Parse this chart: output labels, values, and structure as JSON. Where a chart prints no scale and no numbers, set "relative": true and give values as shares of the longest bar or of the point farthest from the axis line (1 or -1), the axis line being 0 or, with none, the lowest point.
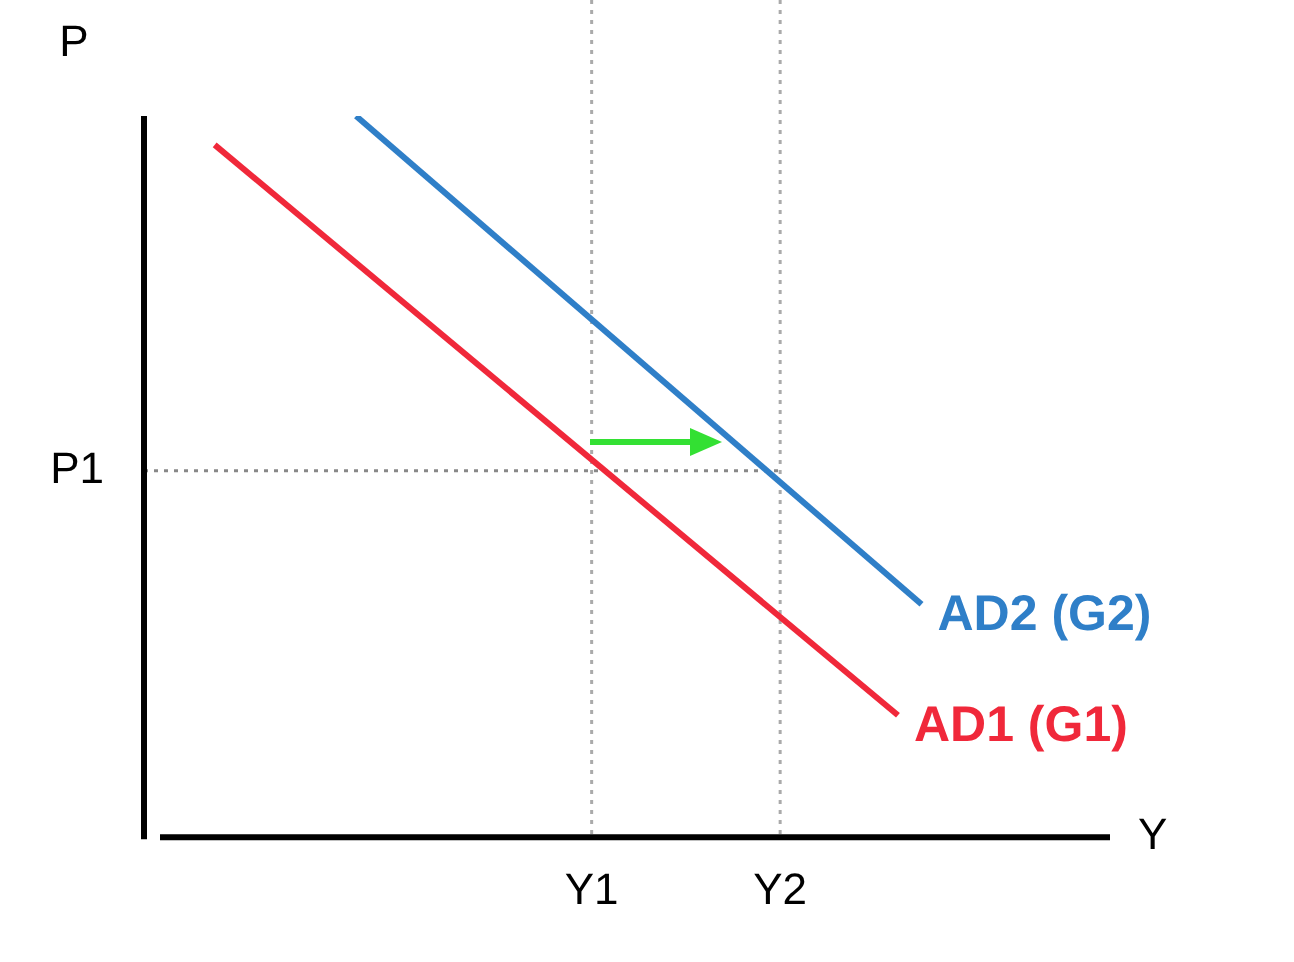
{
  "chart_data": {
    "type": "line",
    "relative": true,
    "xlabel": "Y",
    "ylabel": "P",
    "legend": false,
    "marker": "none",
    "line_style": "solid",
    "grid": false,
    "categories": [
      null,
      null,
      null,
      null,
      null,
      null,
      null,
      null,
      null,
      null,
      null,
      null,
      null,
      null,
      null,
      null,
      null,
      null,
      null,
      "Y1",
      null,
      null,
      null,
      null,
      null,
      null,
      null,
      "Y2",
      null,
      null,
      null,
      null,
      null,
      null,
      null,
      null,
      null,
      null,
      null,
      null,
      null,
      null
    ],
    "series": [
      {
        "name": "AD1 (G1)",
        "color": "#f0283a",
        "values": [
          null,
          null,
          null,
          0.96,
          null,
          null,
          null,
          null,
          null,
          null,
          null,
          null,
          null,
          null,
          null,
          null,
          null,
          null,
          null,
          null,
          null,
          null,
          null,
          null,
          null,
          null,
          null,
          null,
          null,
          null,
          null,
          null,
          0.169,
          null,
          null,
          null,
          null,
          null,
          null,
          null,
          null,
          null
        ]
      },
      {
        "name": "AD2 (G2)",
        "color": "#2f7fc8",
        "values": [
          null,
          null,
          null,
          null,
          null,
          null,
          null,
          null,
          null,
          1,
          null,
          null,
          null,
          null,
          null,
          null,
          null,
          null,
          null,
          null,
          null,
          null,
          null,
          null,
          null,
          null,
          null,
          null,
          null,
          null,
          null,
          null,
          null,
          0.323,
          null,
          null,
          null,
          null,
          null,
          null,
          null,
          null
        ]
      }
    ],
    "ref_lines": [
      {
        "axis": "x",
        "value": "Y1",
        "color": "#aaaaaa",
        "line_style": "dotted"
      },
      {
        "axis": "x",
        "value": "Y2",
        "color": "#aaaaaa",
        "line_style": "dotted"
      },
      {
        "axis": "y",
        "value": 0.508,
        "label": "P1",
        "color": "#888888",
        "line_style": "dotted"
      }
    ]
  }
}
